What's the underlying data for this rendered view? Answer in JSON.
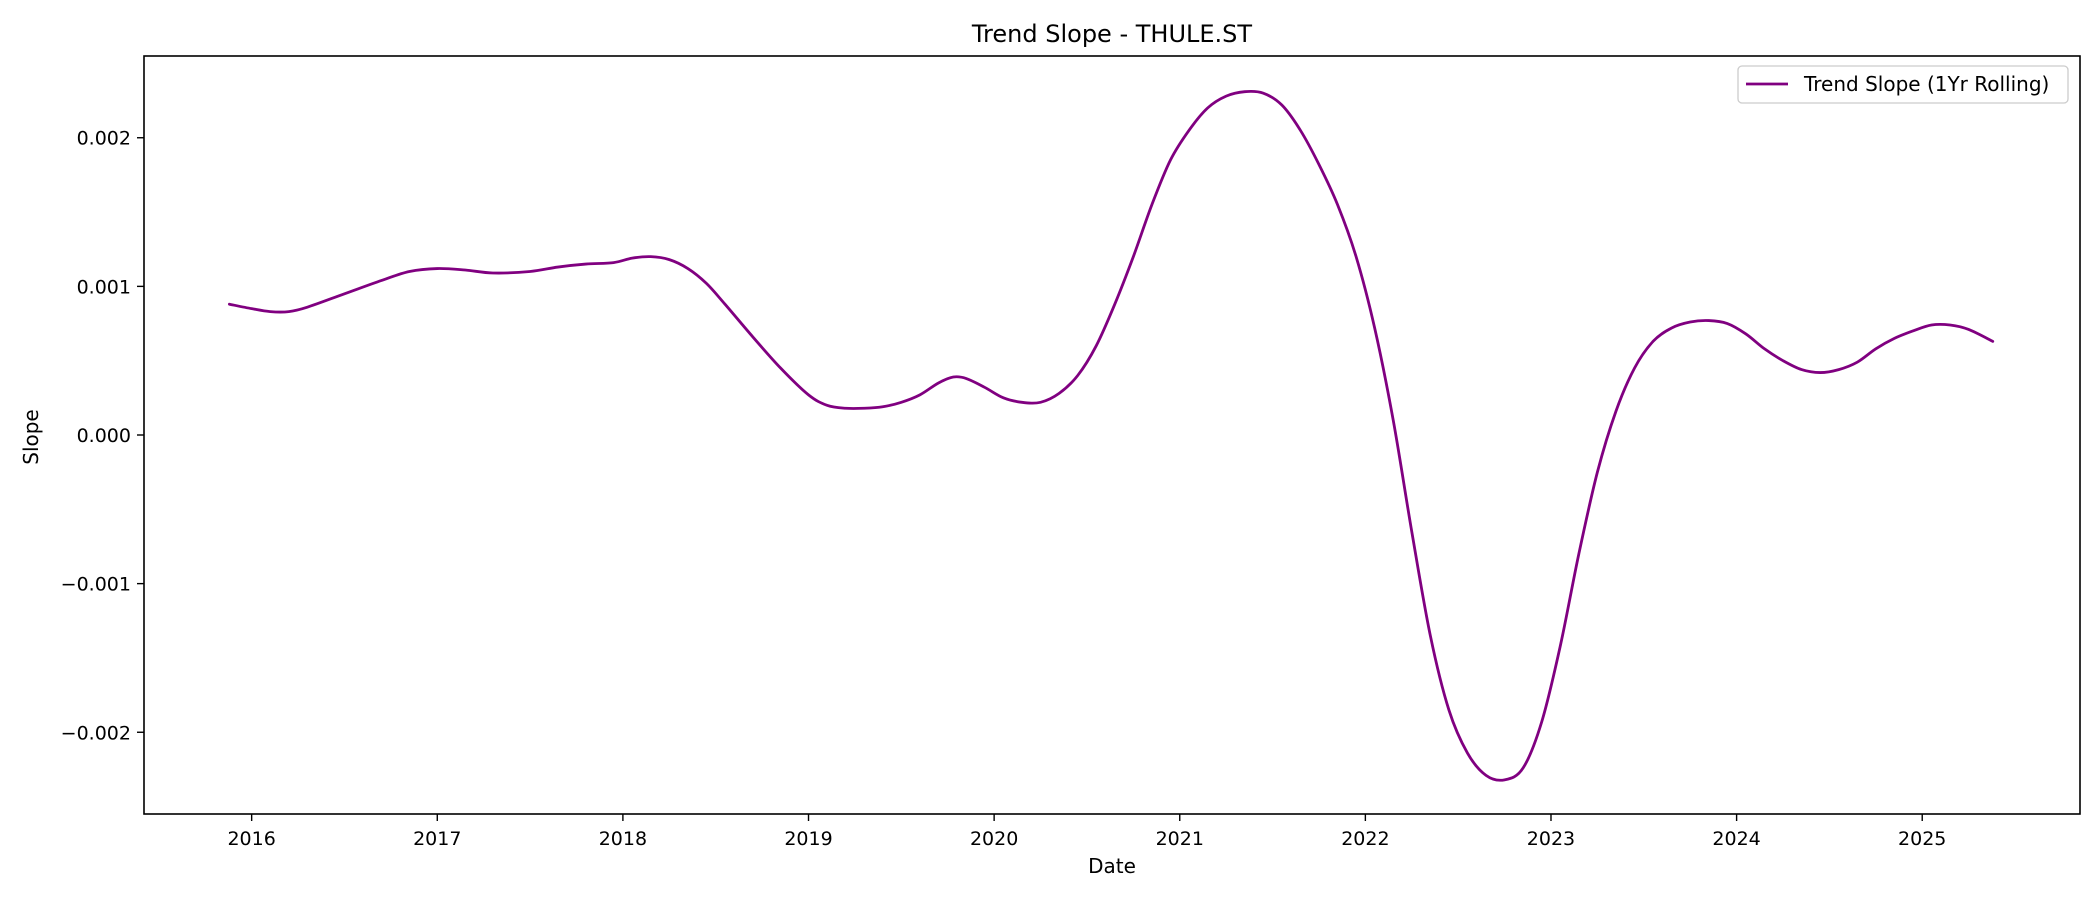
{
  "chart_data": {
    "type": "line",
    "title": "Trend Slope - THULE.ST",
    "xlabel": "Date",
    "ylabel": "Slope",
    "x_ticks": [
      2016,
      2017,
      2018,
      2019,
      2020,
      2021,
      2022,
      2023,
      2024,
      2025
    ],
    "y_ticks": [
      -0.002,
      -0.001,
      0.0,
      0.001,
      0.002
    ],
    "y_tick_labels": [
      "−0.002",
      "−0.001",
      "0.000",
      "0.001",
      "0.002"
    ],
    "xlim": [
      2015.42,
      2025.85
    ],
    "ylim": [
      -0.00255,
      0.00255
    ],
    "grid": false,
    "legend_position": "top-right",
    "series": [
      {
        "name": "Trend Slope (1Yr Rolling)",
        "color": "#800080",
        "x": [
          2015.88,
          2016.0,
          2016.1,
          2016.2,
          2016.3,
          2016.5,
          2016.7,
          2016.85,
          2017.0,
          2017.15,
          2017.3,
          2017.5,
          2017.65,
          2017.8,
          2017.95,
          2018.05,
          2018.15,
          2018.25,
          2018.35,
          2018.45,
          2018.55,
          2018.7,
          2018.85,
          2019.0,
          2019.1,
          2019.2,
          2019.3,
          2019.4,
          2019.5,
          2019.6,
          2019.7,
          2019.78,
          2019.85,
          2019.95,
          2020.05,
          2020.15,
          2020.25,
          2020.35,
          2020.45,
          2020.55,
          2020.65,
          2020.75,
          2020.85,
          2020.95,
          2021.05,
          2021.15,
          2021.25,
          2021.35,
          2021.45,
          2021.55,
          2021.65,
          2021.75,
          2021.85,
          2021.95,
          2022.05,
          2022.15,
          2022.25,
          2022.35,
          2022.45,
          2022.55,
          2022.65,
          2022.75,
          2022.85,
          2022.95,
          2023.05,
          2023.15,
          2023.25,
          2023.35,
          2023.45,
          2023.55,
          2023.65,
          2023.75,
          2023.85,
          2023.95,
          2024.05,
          2024.15,
          2024.25,
          2024.35,
          2024.45,
          2024.55,
          2024.65,
          2024.75,
          2024.85,
          2024.95,
          2025.05,
          2025.15,
          2025.25,
          2025.38
        ],
        "y": [
          0.00088,
          0.00085,
          0.00083,
          0.00083,
          0.00086,
          0.00095,
          0.00104,
          0.0011,
          0.00112,
          0.00111,
          0.00109,
          0.0011,
          0.00113,
          0.00115,
          0.00116,
          0.00119,
          0.0012,
          0.00118,
          0.00112,
          0.00102,
          0.00088,
          0.00066,
          0.00045,
          0.00027,
          0.0002,
          0.00018,
          0.00018,
          0.00019,
          0.00022,
          0.00027,
          0.00035,
          0.00039,
          0.00038,
          0.00032,
          0.00025,
          0.00022,
          0.00022,
          0.00028,
          0.0004,
          0.0006,
          0.00088,
          0.0012,
          0.00155,
          0.00185,
          0.00205,
          0.0022,
          0.00228,
          0.00231,
          0.0023,
          0.00222,
          0.00205,
          0.00182,
          0.00155,
          0.0012,
          0.00072,
          0.0001,
          -0.00065,
          -0.00135,
          -0.00185,
          -0.00214,
          -0.00229,
          -0.00232,
          -0.00224,
          -0.00193,
          -0.00142,
          -0.0008,
          -0.00025,
          0.00016,
          0.00045,
          0.00063,
          0.00072,
          0.00076,
          0.00077,
          0.00075,
          0.00068,
          0.00058,
          0.0005,
          0.00044,
          0.00042,
          0.00044,
          0.00049,
          0.00058,
          0.00065,
          0.0007,
          0.00074,
          0.00074,
          0.00071,
          0.00063
        ]
      }
    ]
  }
}
